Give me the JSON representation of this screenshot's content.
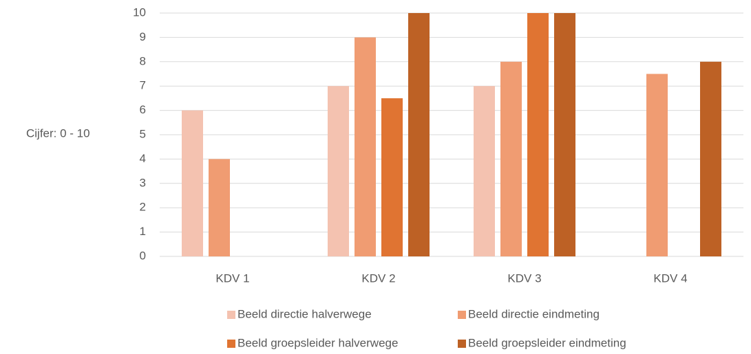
{
  "chart_data": {
    "type": "bar",
    "y_label": "Cijfer: 0 - 10",
    "categories": [
      "KDV 1",
      "KDV 2",
      "KDV 3",
      "KDV 4"
    ],
    "series": [
      {
        "name": "Beeld directie halverwege",
        "color": "#f4c2b0",
        "values": [
          6,
          7,
          7,
          null
        ]
      },
      {
        "name": "Beeld directie eindmeting",
        "color": "#f09c72",
        "values": [
          4,
          9,
          8,
          7.5
        ]
      },
      {
        "name": "Beeld groepsleider halverwege",
        "color": "#e07432",
        "values": [
          null,
          6.5,
          10,
          null
        ]
      },
      {
        "name": "Beeld groepsleider eindmeting",
        "color": "#bd6125",
        "values": [
          null,
          10,
          10,
          8
        ]
      }
    ],
    "ylim": [
      0,
      10
    ],
    "yticks": [
      0,
      1,
      2,
      3,
      4,
      5,
      6,
      7,
      8,
      9,
      10
    ],
    "grid": true,
    "legend": "bottom"
  }
}
